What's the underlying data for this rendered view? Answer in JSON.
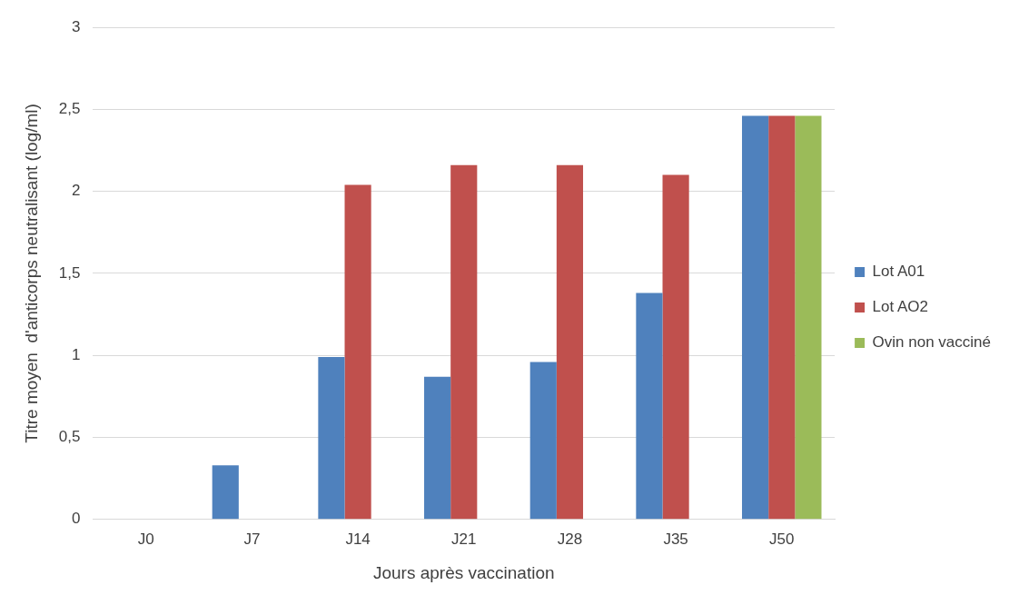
{
  "chart_data": {
    "type": "bar",
    "xlabel": "Jours après vaccination",
    "ylabel": "Titre moyen  d'anticorps neutralisant (log/ml)",
    "categories": [
      "J0",
      "J7",
      "J14",
      "J21",
      "J28",
      "J35",
      "J50"
    ],
    "series": [
      {
        "name": "Lot A01",
        "color": "#4f81bd",
        "values": [
          0,
          0.33,
          0.99,
          0.87,
          0.96,
          1.38,
          2.46
        ]
      },
      {
        "name": "Lot AO2",
        "color": "#c0504d",
        "values": [
          0,
          0,
          2.04,
          2.16,
          2.16,
          2.1,
          2.46
        ]
      },
      {
        "name": "Ovin non vacciné",
        "color": "#9bbb59",
        "values": [
          0,
          0,
          0,
          0,
          0,
          0,
          2.46
        ]
      }
    ],
    "ylim": [
      0,
      3
    ],
    "yticks": [
      0,
      {
        "value": 0.5,
        "label": "0,5"
      },
      1,
      {
        "value": 1.5,
        "label": "1,5"
      },
      2,
      {
        "value": 2.5,
        "label": "2,5"
      },
      3
    ],
    "grid": "y",
    "legend": "right"
  }
}
